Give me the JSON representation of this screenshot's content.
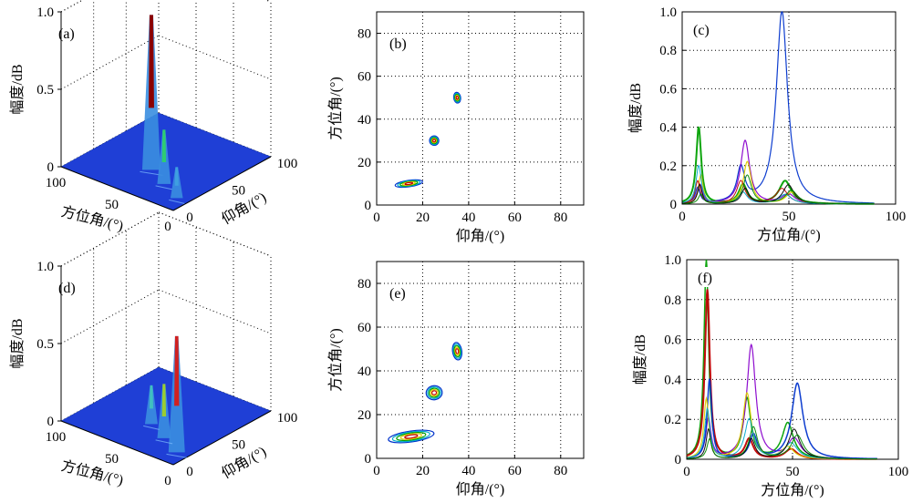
{
  "figure": {
    "background": "#ffffff",
    "colors": {
      "blue": "#0033cc",
      "surface": "#1f3fd6",
      "green": "#00a000",
      "red": "#c00000",
      "purple": "#8800cc",
      "yellow": "#ddcc00",
      "cyan": "#00aacc"
    }
  },
  "chart_data": [
    {
      "panel": "a",
      "label": "(a)",
      "type": "surface3d",
      "zlabel": "幅度/dB",
      "xlabel": "方位角/(°)",
      "ylabel": "仰角/(°)",
      "zticks": [
        "0",
        "0.5",
        "1.0"
      ],
      "xticks": [
        "100",
        "50",
        "0"
      ],
      "yticks": [
        "0",
        "50",
        "100"
      ],
      "zlim": [
        0,
        1
      ],
      "peaks": [
        {
          "azimuth": 50,
          "elevation": 35,
          "amplitude": 1.0,
          "color": "#8b0000"
        },
        {
          "azimuth": 30,
          "elevation": 25,
          "amplitude": 0.35,
          "color": "#2ecc71"
        },
        {
          "azimuth": 10,
          "elevation": 15,
          "amplitude": 0.2,
          "color": "#3fa0e0"
        }
      ]
    },
    {
      "panel": "b",
      "label": "(b)",
      "type": "contour",
      "xlabel": "仰角/(°)",
      "ylabel": "方位角/(°)",
      "xlim": [
        0,
        90
      ],
      "ylim": [
        0,
        90
      ],
      "xticks": [
        0,
        20,
        40,
        60,
        80
      ],
      "yticks": [
        0,
        20,
        40,
        60,
        80
      ],
      "grid": true,
      "blobs": [
        {
          "x": 14,
          "y": 10,
          "rx": 6,
          "ry": 1.5
        },
        {
          "x": 25,
          "y": 30,
          "rx": 2,
          "ry": 2.2
        },
        {
          "x": 35,
          "y": 50,
          "rx": 1.5,
          "ry": 2.5
        }
      ]
    },
    {
      "panel": "c",
      "label": "(c)",
      "type": "line",
      "xlabel": "方位角/(°)",
      "ylabel": "幅度/dB",
      "xlim": [
        0,
        100
      ],
      "ylim": [
        0,
        1
      ],
      "xticks": [
        0,
        50,
        100
      ],
      "yticks": [
        0,
        0.2,
        0.4,
        0.6,
        0.8,
        1.0
      ],
      "grid": true,
      "peak_positions": [
        8,
        29,
        49
      ],
      "series": [
        {
          "color": "#0033cc",
          "amps": [
            0.08,
            0.18,
            1.0
          ],
          "width": 1.2
        },
        {
          "color": "#00a000",
          "amps": [
            0.4,
            0.1,
            0.12
          ],
          "width": 2.0
        },
        {
          "color": "#8800cc",
          "amps": [
            0.1,
            0.33,
            0.05
          ],
          "width": 1.2
        },
        {
          "color": "#ddcc00",
          "amps": [
            0.15,
            0.22,
            0.06
          ],
          "width": 1.2
        },
        {
          "color": "#c00000",
          "amps": [
            0.12,
            0.12,
            0.08
          ],
          "width": 1.0
        },
        {
          "color": "#00aacc",
          "amps": [
            0.2,
            0.06,
            0.05
          ],
          "width": 1.0
        },
        {
          "color": "#000000",
          "amps": [
            0.1,
            0.08,
            0.1
          ],
          "width": 1.0
        },
        {
          "color": "#008800",
          "amps": [
            0.05,
            0.15,
            0.07
          ],
          "width": 1.0
        }
      ]
    },
    {
      "panel": "d",
      "label": "(d)",
      "type": "surface3d",
      "zlabel": "幅度/dB",
      "xlabel": "方位角/(°)",
      "ylabel": "仰角/(°)",
      "zticks": [
        "0",
        "0.5",
        "1.0"
      ],
      "xticks": [
        "100",
        "50",
        "0"
      ],
      "yticks": [
        "0",
        "50",
        "100"
      ],
      "zlim": [
        0,
        1
      ],
      "peaks": [
        {
          "azimuth": 10,
          "elevation": 15,
          "amplitude": 0.75,
          "color": "#d02020"
        },
        {
          "azimuth": 30,
          "elevation": 25,
          "amplitude": 0.35,
          "color": "#9acd32"
        },
        {
          "azimuth": 50,
          "elevation": 35,
          "amplitude": 0.25,
          "color": "#40c0c0"
        }
      ]
    },
    {
      "panel": "e",
      "label": "(e)",
      "type": "contour",
      "xlabel": "仰角/(°)",
      "ylabel": "方位角/(°)",
      "xlim": [
        0,
        90
      ],
      "ylim": [
        0,
        90
      ],
      "xticks": [
        0,
        20,
        40,
        60,
        80
      ],
      "yticks": [
        0,
        20,
        40,
        60,
        80
      ],
      "grid": true,
      "blobs": [
        {
          "x": 15,
          "y": 10,
          "rx": 10,
          "ry": 2.5
        },
        {
          "x": 25,
          "y": 30,
          "rx": 3.5,
          "ry": 3.2
        },
        {
          "x": 35,
          "y": 49,
          "rx": 2,
          "ry": 4
        }
      ]
    },
    {
      "panel": "f",
      "label": "(f)",
      "type": "line",
      "xlabel": "方位角/(°)",
      "ylabel": "幅度/dB",
      "xlim": [
        0,
        100
      ],
      "ylim": [
        0,
        1
      ],
      "xticks": [
        0,
        50,
        100
      ],
      "yticks": [
        0,
        0.2,
        0.4,
        0.6,
        0.8,
        1.0
      ],
      "grid": true,
      "peak_positions": [
        10,
        30,
        50
      ],
      "series": [
        {
          "color": "#00a000",
          "amps": [
            1.0,
            0.3,
            0.18
          ],
          "width": 1.5
        },
        {
          "color": "#c00000",
          "amps": [
            0.85,
            0.1,
            0.05
          ],
          "width": 2.0
        },
        {
          "color": "#8800cc",
          "amps": [
            0.2,
            0.57,
            0.1
          ],
          "width": 1.2
        },
        {
          "color": "#0033cc",
          "amps": [
            0.4,
            0.12,
            0.38
          ],
          "width": 1.5
        },
        {
          "color": "#ddcc00",
          "amps": [
            0.3,
            0.33,
            0.06
          ],
          "width": 1.2
        },
        {
          "color": "#00aacc",
          "amps": [
            0.25,
            0.2,
            0.08
          ],
          "width": 1.0
        },
        {
          "color": "#000000",
          "amps": [
            0.15,
            0.1,
            0.15
          ],
          "width": 1.0
        },
        {
          "color": "#008800",
          "amps": [
            0.1,
            0.16,
            0.12
          ],
          "width": 1.0
        }
      ]
    }
  ]
}
